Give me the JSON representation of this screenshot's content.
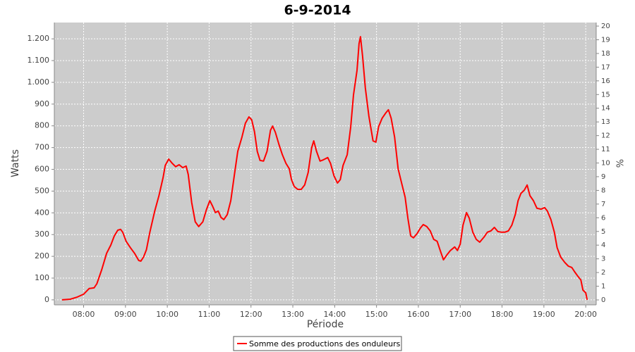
{
  "chart_data": {
    "type": "line",
    "title": "6-9-2014",
    "x_label": "Période",
    "y_label": "Watts",
    "y2_label": "%",
    "x": [
      "07:29",
      "07:41",
      "07:51",
      "08:00",
      "08:08",
      "08:15",
      "08:19",
      "08:26",
      "08:33",
      "08:39",
      "08:44",
      "08:49",
      "08:53",
      "08:56",
      "09:01",
      "09:07",
      "09:13",
      "09:19",
      "09:22",
      "09:26",
      "09:30",
      "09:35",
      "09:42",
      "09:48",
      "09:54",
      "09:57",
      "10:02",
      "10:07",
      "10:12",
      "10:17",
      "10:22",
      "10:27",
      "10:30",
      "10:35",
      "10:40",
      "10:45",
      "10:51",
      "10:56",
      "11:01",
      "11:05",
      "11:09",
      "11:13",
      "11:17",
      "11:21",
      "11:26",
      "11:31",
      "11:36",
      "11:41",
      "11:47",
      "11:52",
      "11:57",
      "12:01",
      "12:05",
      "12:09",
      "12:13",
      "12:18",
      "12:23",
      "12:28",
      "12:31",
      "12:35",
      "12:40",
      "12:45",
      "12:50",
      "12:55",
      "12:58",
      "13:02",
      "13:07",
      "13:12",
      "13:17",
      "13:22",
      "13:27",
      "13:30",
      "13:34",
      "13:39",
      "13:44",
      "13:50",
      "13:54",
      "13:59",
      "14:04",
      "14:08",
      "14:12",
      "14:18",
      "14:23",
      "14:27",
      "14:32",
      "14:35",
      "14:37",
      "14:40",
      "14:44",
      "14:49",
      "14:55",
      "14:59",
      "15:03",
      "15:08",
      "15:13",
      "15:17",
      "15:21",
      "15:26",
      "15:31",
      "15:36",
      "15:41",
      "15:45",
      "15:49",
      "15:53",
      "15:58",
      "16:03",
      "16:07",
      "16:12",
      "16:17",
      "16:22",
      "16:27",
      "16:31",
      "16:36",
      "16:41",
      "16:46",
      "16:52",
      "16:56",
      "17:00",
      "17:04",
      "17:09",
      "17:13",
      "17:18",
      "17:23",
      "17:28",
      "17:34",
      "17:39",
      "17:44",
      "17:49",
      "17:54",
      "17:59",
      "18:04",
      "18:09",
      "18:14",
      "18:19",
      "18:23",
      "18:27",
      "18:32",
      "18:36",
      "18:40",
      "18:45",
      "18:50",
      "18:56",
      "19:01",
      "19:05",
      "19:10",
      "19:15",
      "19:19",
      "19:24",
      "19:30",
      "19:35",
      "19:40",
      "19:44",
      "19:49",
      "19:53",
      "19:56",
      "20:00",
      "20:02"
    ],
    "series": [
      {
        "name": "Somme des productions des onduleurs",
        "color": "#ff0000",
        "values": [
          0,
          3,
          13,
          26,
          52,
          55,
          74,
          139,
          214,
          252,
          294,
          320,
          324,
          311,
          269,
          240,
          214,
          181,
          178,
          197,
          230,
          311,
          408,
          479,
          563,
          618,
          647,
          628,
          612,
          621,
          608,
          615,
          576,
          447,
          359,
          337,
          359,
          414,
          456,
          430,
          401,
          408,
          379,
          369,
          392,
          456,
          570,
          683,
          748,
          812,
          841,
          828,
          773,
          683,
          641,
          638,
          683,
          780,
          799,
          770,
          715,
          667,
          628,
          602,
          553,
          521,
          508,
          508,
          528,
          586,
          699,
          731,
          683,
          638,
          644,
          654,
          628,
          570,
          537,
          553,
          618,
          667,
          796,
          942,
          1055,
          1178,
          1210,
          1120,
          974,
          845,
          731,
          725,
          796,
          835,
          858,
          874,
          835,
          748,
          602,
          537,
          472,
          375,
          294,
          285,
          304,
          330,
          346,
          337,
          317,
          278,
          269,
          230,
          184,
          207,
          227,
          243,
          227,
          256,
          343,
          401,
          375,
          311,
          278,
          265,
          288,
          311,
          317,
          333,
          314,
          311,
          311,
          317,
          343,
          392,
          456,
          489,
          505,
          528,
          479,
          456,
          421,
          417,
          424,
          408,
          369,
          311,
          240,
          197,
          172,
          155,
          149,
          129,
          107,
          91,
          45,
          32,
          0
        ]
      }
    ],
    "xlim": [
      "07:18",
      "20:15"
    ],
    "xticks": [
      "08:00",
      "09:00",
      "10:00",
      "11:00",
      "12:00",
      "13:00",
      "14:00",
      "15:00",
      "16:00",
      "17:00",
      "18:00",
      "19:00",
      "20:00"
    ],
    "ylim": [
      -23,
      1275
    ],
    "yticks": [
      0,
      100,
      200,
      300,
      400,
      500,
      600,
      700,
      800,
      900,
      {
        "value": 1000,
        "label": "1.000"
      },
      {
        "value": 1100,
        "label": "1.100"
      },
      {
        "value": 1200,
        "label": "1.200"
      }
    ],
    "y2lim": [
      -0.36,
      20.26
    ],
    "y2ticks": [
      0,
      1,
      2,
      3,
      4,
      5,
      6,
      7,
      8,
      9,
      10,
      11,
      12,
      13,
      14,
      15,
      16,
      17,
      18,
      19,
      20
    ],
    "grid": true,
    "legend": "bottom"
  }
}
